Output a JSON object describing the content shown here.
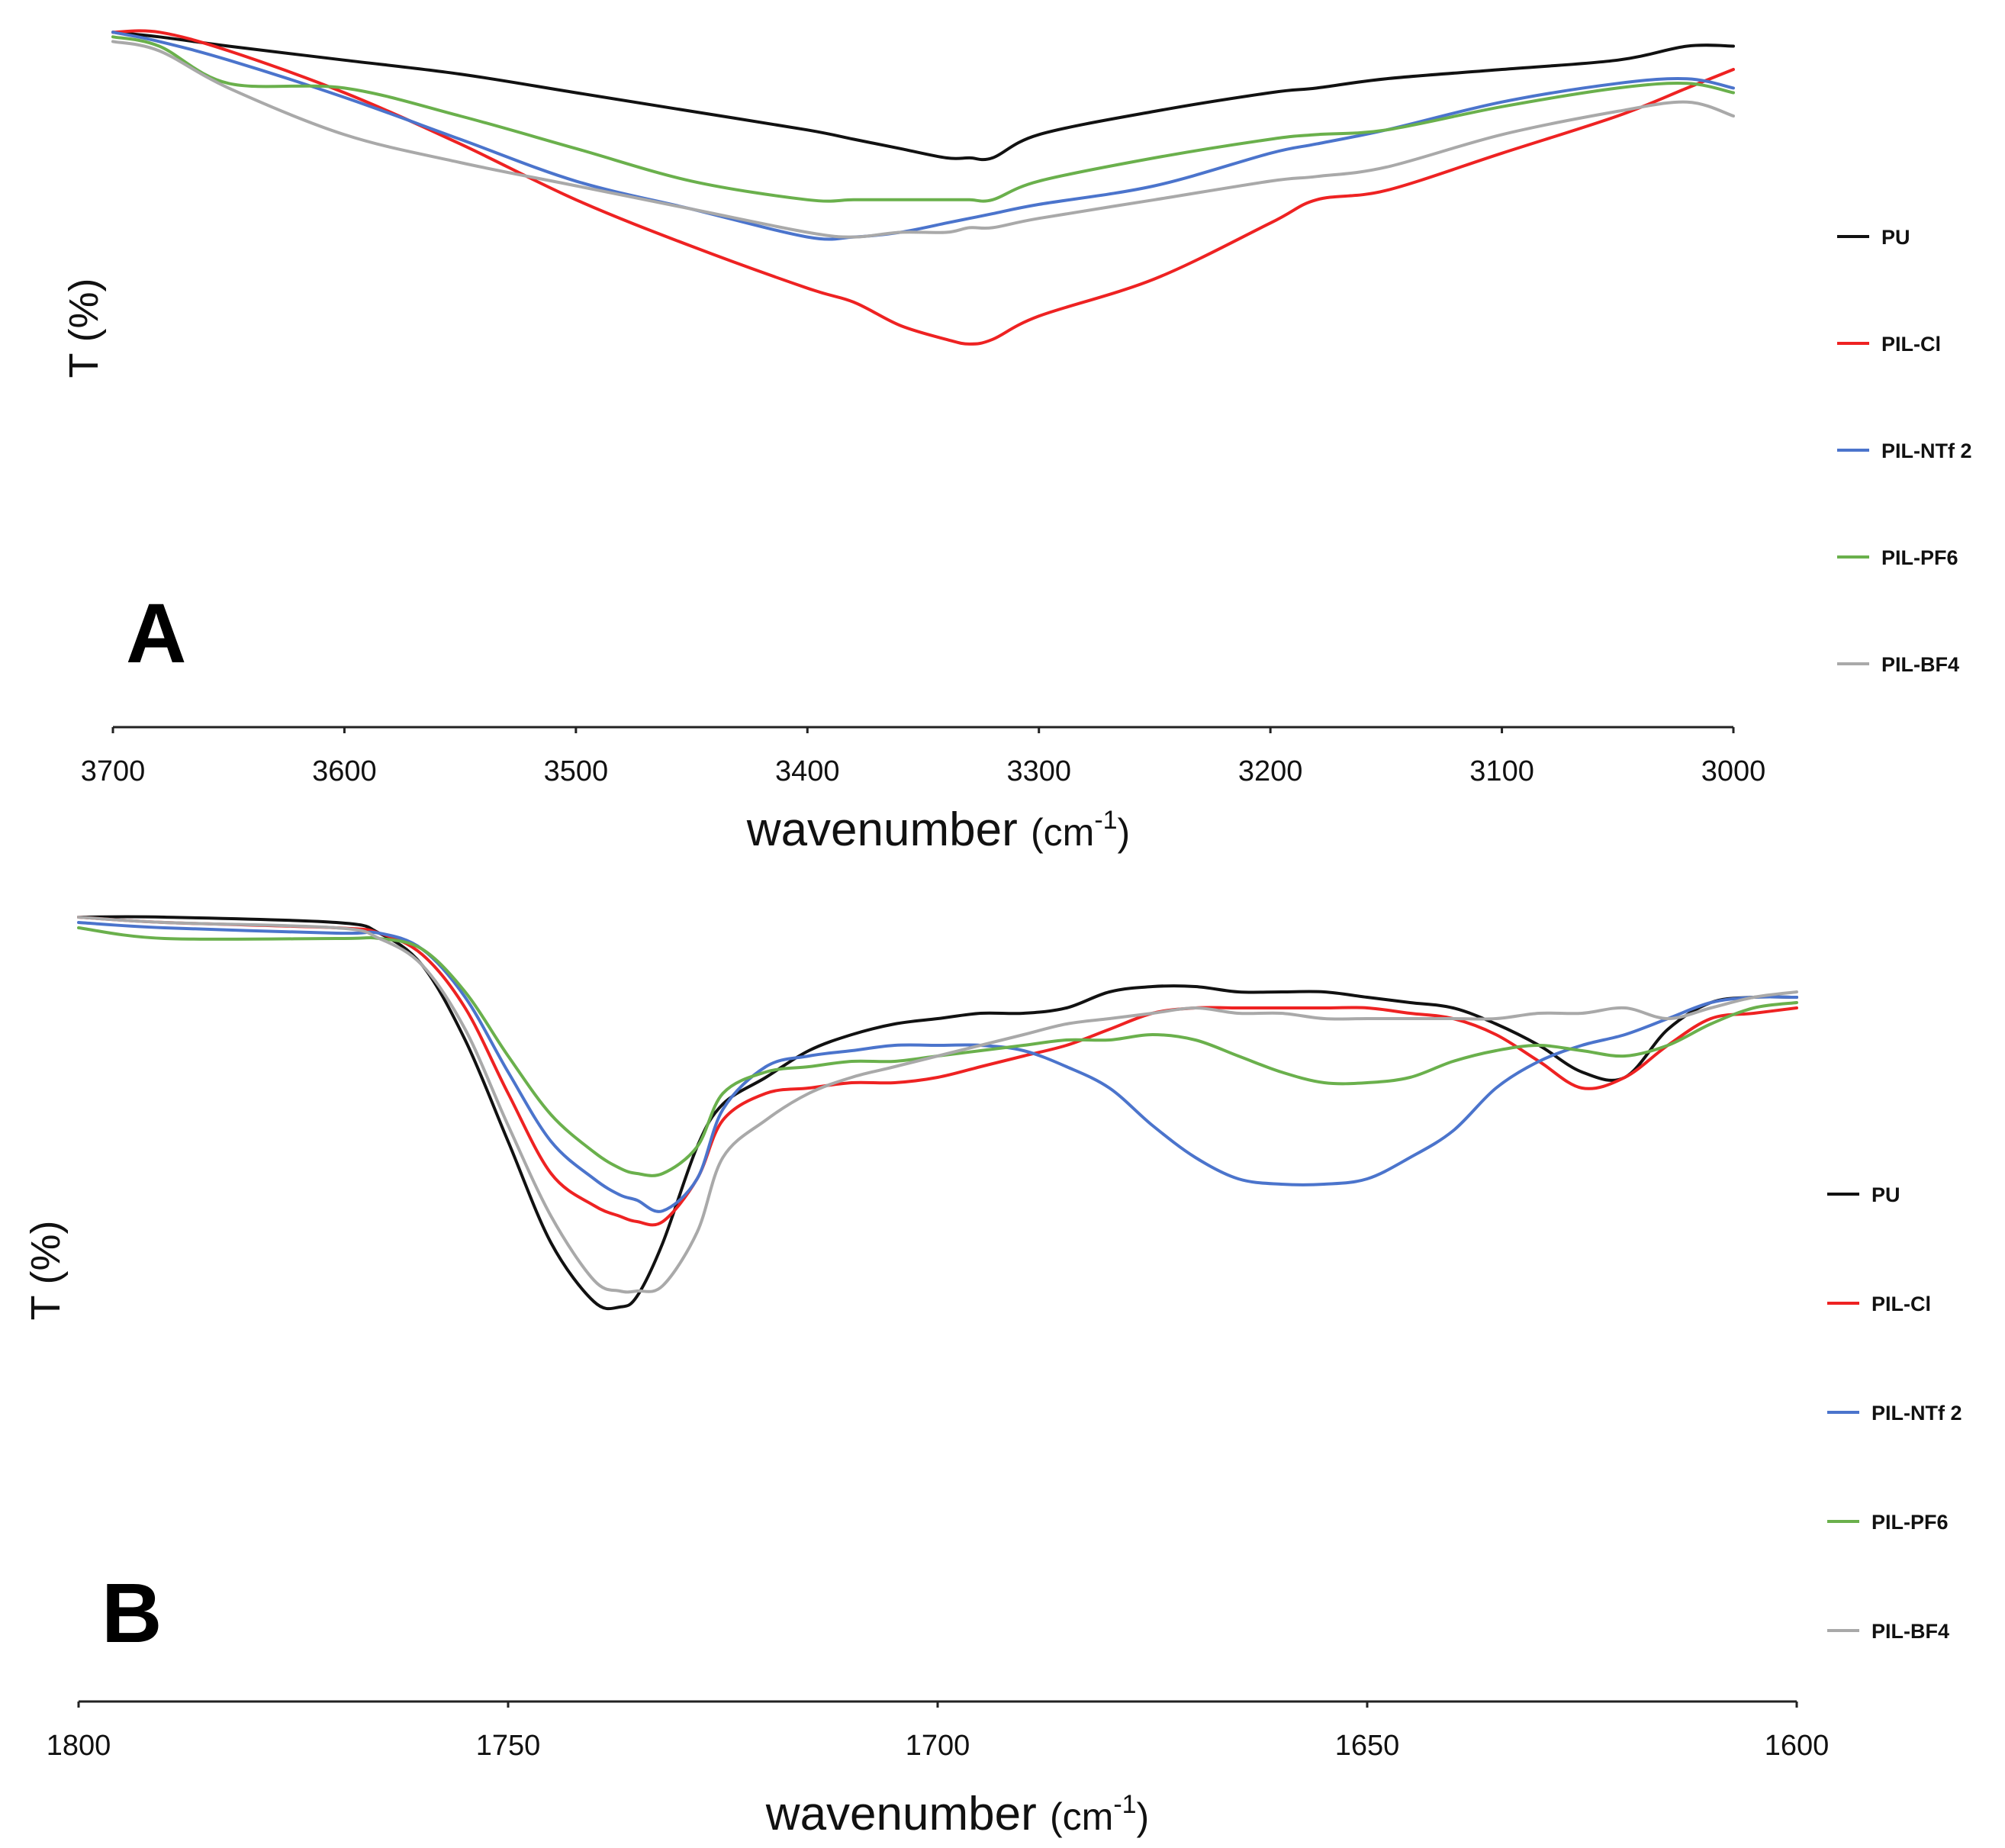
{
  "chart_data": [
    {
      "type": "line",
      "panel": "A",
      "xlabel": "wavenumber",
      "xlabel_unit": "cm",
      "xlabel_unit_sup": "-1",
      "ylabel": "T (%)",
      "xlim": [
        3700,
        3000
      ],
      "ylim": [
        0,
        100
      ],
      "xticks": [
        "3700",
        "3600",
        "3500",
        "3400",
        "3300",
        "3200",
        "3100",
        "3000"
      ],
      "legend_position": "right",
      "x": [
        3700,
        3680,
        3650,
        3600,
        3550,
        3500,
        3450,
        3400,
        3380,
        3360,
        3340,
        3330,
        3320,
        3300,
        3250,
        3200,
        3180,
        3150,
        3100,
        3050,
        3020,
        3000
      ],
      "series": [
        {
          "name": "PU",
          "color": "#111111",
          "values": [
            98,
            97,
            95,
            92,
            89,
            85,
            81,
            77,
            75,
            73,
            71,
            71,
            71,
            76,
            81,
            85,
            86,
            88,
            90,
            92,
            95,
            95
          ]
        },
        {
          "name": "PIL-Cl",
          "color": "#ee2222",
          "values": [
            98,
            98,
            94,
            85,
            74,
            62,
            52,
            43,
            40,
            35,
            32,
            31,
            32,
            37,
            45,
            57,
            62,
            64,
            72,
            80,
            86,
            90
          ]
        },
        {
          "name": "PIL-NTf 2",
          "color": "#4b74cc",
          "values": [
            98,
            96,
            92,
            84,
            75,
            66,
            60,
            54,
            54,
            55,
            57,
            58,
            59,
            61,
            65,
            72,
            74,
            77,
            83,
            87,
            88,
            86
          ]
        },
        {
          "name": "PIL-PF6",
          "color": "#6ab04c",
          "values": [
            97,
            95,
            87,
            86,
            80,
            73,
            66,
            62,
            62,
            62,
            62,
            62,
            62,
            66,
            71,
            75,
            76,
            77,
            82,
            86,
            87,
            85
          ]
        },
        {
          "name": "PIL-BF4",
          "color": "#a9a9a9",
          "values": [
            96,
            94,
            86,
            76,
            70,
            65,
            60,
            55,
            54,
            55,
            55,
            56,
            56,
            58,
            62,
            66,
            67,
            69,
            76,
            81,
            83,
            80
          ]
        }
      ]
    },
    {
      "type": "line",
      "panel": "B",
      "xlabel": "wavenumber",
      "xlabel_unit": "cm",
      "xlabel_unit_sup": "-1",
      "ylabel": "T (%)",
      "xlim": [
        1800,
        1600
      ],
      "ylim": [
        0,
        100
      ],
      "xticks": [
        "1800",
        "1750",
        "1700",
        "1650",
        "1600"
      ],
      "legend_position": "right",
      "x": [
        1800,
        1790,
        1770,
        1765,
        1760,
        1755,
        1750,
        1745,
        1740,
        1737,
        1735,
        1732,
        1728,
        1725,
        1720,
        1715,
        1710,
        1705,
        1700,
        1695,
        1690,
        1685,
        1680,
        1675,
        1670,
        1665,
        1660,
        1655,
        1650,
        1645,
        1640,
        1635,
        1630,
        1625,
        1620,
        1615,
        1610,
        1605,
        1600
      ],
      "series": [
        {
          "name": "PU",
          "color": "#111111",
          "values": [
            99,
            99,
            98,
            96,
            90,
            76,
            57,
            38,
            27,
            26,
            28,
            38,
            56,
            64,
            69,
            74,
            77,
            79,
            80,
            81,
            81,
            82,
            85,
            86,
            86,
            85,
            85,
            85,
            84,
            83,
            82,
            79,
            75,
            70,
            69,
            78,
            83,
            84,
            84
          ]
        },
        {
          "name": "PIL-Cl",
          "color": "#ee2222",
          "values": [
            99,
            98,
            97,
            96,
            92,
            82,
            66,
            51,
            45,
            43,
            42,
            42,
            50,
            61,
            66,
            67,
            68,
            68,
            69,
            71,
            73,
            75,
            78,
            81,
            82,
            82,
            82,
            82,
            82,
            81,
            80,
            77,
            72,
            67,
            69,
            75,
            80,
            81,
            82
          ]
        },
        {
          "name": "PIL-NTf 2",
          "color": "#4b74cc",
          "values": [
            98,
            97,
            96,
            96,
            93,
            84,
            70,
            57,
            50,
            47,
            46,
            44,
            50,
            63,
            71,
            73,
            74,
            75,
            75,
            75,
            74,
            71,
            67,
            60,
            54,
            50,
            49,
            49,
            50,
            54,
            59,
            67,
            72,
            75,
            77,
            80,
            83,
            84,
            84
          ]
        },
        {
          "name": "PIL-PF6",
          "color": "#6ab04c",
          "values": [
            97,
            95,
            95,
            95,
            93,
            85,
            73,
            62,
            55,
            52,
            51,
            51,
            56,
            66,
            70,
            71,
            72,
            72,
            73,
            74,
            75,
            76,
            76,
            77,
            76,
            73,
            70,
            68,
            68,
            69,
            72,
            74,
            75,
            74,
            73,
            75,
            79,
            82,
            83
          ]
        },
        {
          "name": "PIL-BF4",
          "color": "#a9a9a9",
          "values": [
            99,
            98,
            97,
            95,
            90,
            78,
            60,
            43,
            31,
            29,
            29,
            30,
            40,
            54,
            61,
            66,
            69,
            71,
            73,
            75,
            77,
            79,
            80,
            81,
            82,
            81,
            81,
            80,
            80,
            80,
            80,
            80,
            81,
            81,
            82,
            80,
            82,
            84,
            85
          ]
        }
      ]
    }
  ]
}
